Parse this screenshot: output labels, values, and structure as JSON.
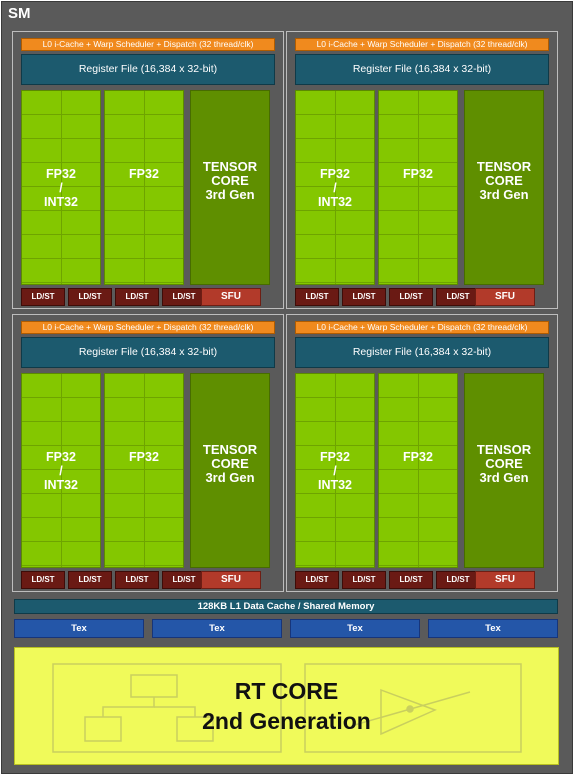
{
  "sm": {
    "title": "SM",
    "partition": {
      "l0_label": "L0 i-Cache + Warp Scheduler + Dispatch (32 thread/clk)",
      "register_file": "Register File (16,384 x 32-bit)",
      "fp32_int32": [
        "FP32",
        "/",
        "INT32"
      ],
      "fp32": "FP32",
      "tensor": [
        "TENSOR",
        "CORE",
        "3rd Gen"
      ],
      "ldst": "LD/ST",
      "sfu": "SFU"
    },
    "l1_cache": "128KB L1 Data Cache / Shared Memory",
    "tex": [
      "Tex",
      "Tex",
      "Tex",
      "Tex"
    ],
    "rt_core": [
      "RT CORE",
      "2nd Generation"
    ]
  },
  "colors": {
    "sm_background": "#5a5a5a",
    "l0_orange": "#f08a1e",
    "register_teal": "#1c5a6e",
    "fp_green": "#84c700",
    "tensor_green": "#5f8f00",
    "ldst_red": "#6a1a14",
    "sfu_red": "#b23a2a",
    "tex_blue": "#2456a8",
    "rt_yellow": "#f0fa5a"
  }
}
